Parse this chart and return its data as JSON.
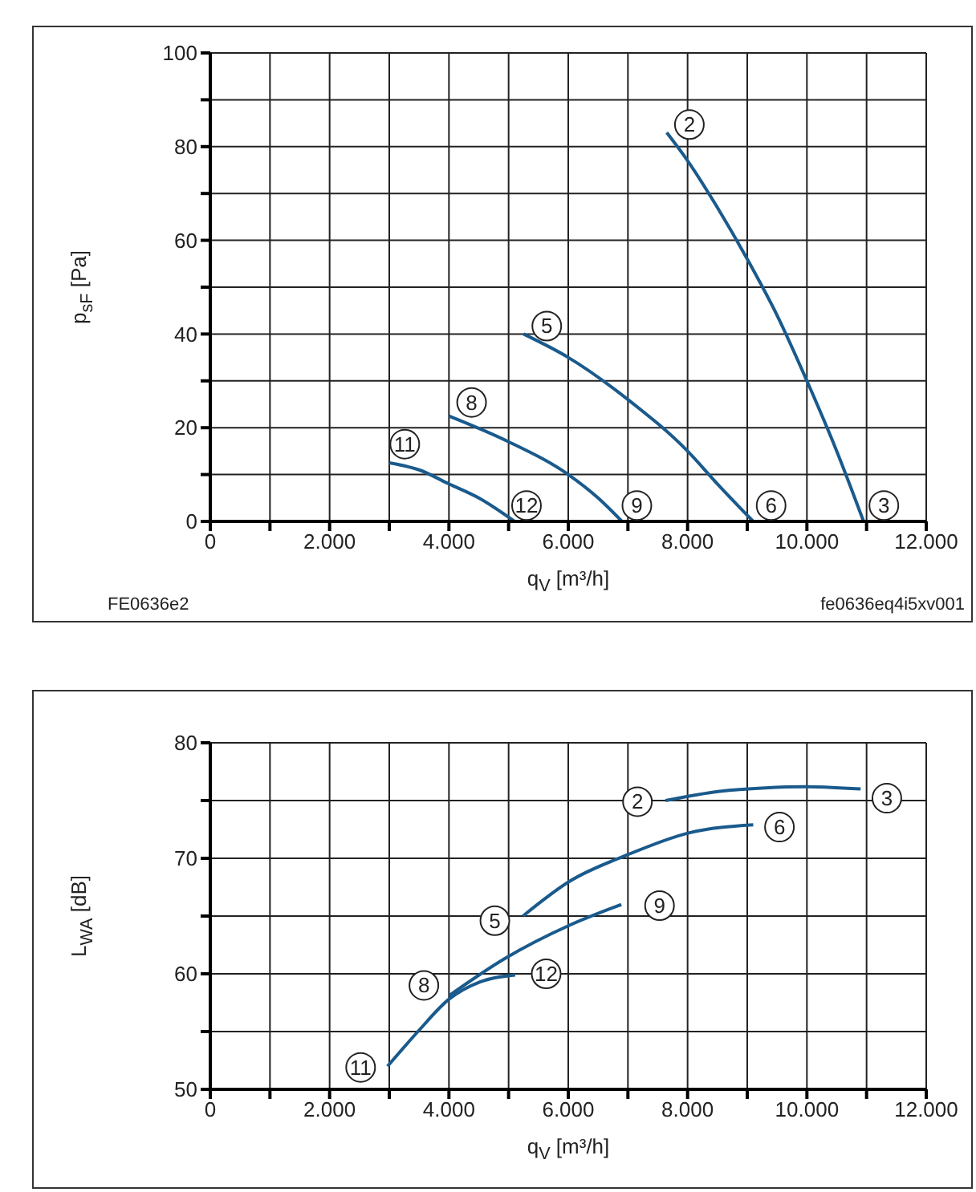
{
  "chart_data": [
    {
      "type": "line",
      "xlabel": "q$_{V}$ [m³/h]",
      "ylabel": "p$_{sF}$ [Pa]",
      "grid": true,
      "marker": "none",
      "xlim": [
        0,
        12000
      ],
      "xticks": [
        0,
        {
          "value": 1000,
          "label": null
        },
        {
          "value": 2000,
          "label": "2.000"
        },
        {
          "value": 3000,
          "label": null
        },
        {
          "value": 4000,
          "label": "4.000"
        },
        {
          "value": 5000,
          "label": null
        },
        {
          "value": 6000,
          "label": "6.000"
        },
        {
          "value": 7000,
          "label": null
        },
        {
          "value": 8000,
          "label": "8.000"
        },
        {
          "value": 9000,
          "label": null
        },
        {
          "value": 10000,
          "label": "10.000"
        },
        {
          "value": 11000,
          "label": null
        },
        {
          "value": 12000,
          "label": "12.000"
        }
      ],
      "ylim": [
        0,
        100
      ],
      "yticks": [
        0,
        {
          "value": 10,
          "label": null
        },
        20,
        {
          "value": 30,
          "label": null
        },
        40,
        {
          "value": 50,
          "label": null
        },
        60,
        {
          "value": 70,
          "label": null
        },
        80,
        {
          "value": 90,
          "label": null
        },
        100
      ],
      "series": [
        {
          "color": "#1a5a8c",
          "x": [
            7650,
            8000,
            8500,
            9000,
            9500,
            10000,
            10500,
            10950
          ],
          "values": [
            83,
            77,
            67,
            56,
            44,
            30,
            15,
            0
          ]
        },
        {
          "color": "#1a5a8c",
          "x": [
            5250,
            6000,
            7000,
            8000,
            8500,
            9100
          ],
          "values": [
            40,
            35,
            26,
            15,
            8,
            0
          ]
        },
        {
          "color": "#1a5a8c",
          "x": [
            4000,
            5000,
            6000,
            6500,
            6900
          ],
          "values": [
            22.5,
            17,
            10,
            5,
            0
          ]
        },
        {
          "color": "#1a5a8c",
          "x": [
            3000,
            3500,
            4000,
            4500,
            5100
          ],
          "values": [
            12.5,
            11,
            8,
            5,
            0
          ]
        }
      ],
      "annotations": [
        {
          "text": "2",
          "x": 8030,
          "y": 84.7
        },
        {
          "text": "3",
          "x": 11290,
          "y": 3.4
        },
        {
          "text": "5",
          "x": 5640,
          "y": 41.7
        },
        {
          "text": "6",
          "x": 9400,
          "y": 3.4
        },
        {
          "text": "8",
          "x": 4380,
          "y": 25.4
        },
        {
          "text": "9",
          "x": 7150,
          "y": 3.4
        },
        {
          "text": "11",
          "x": 3260,
          "y": 16.5
        },
        {
          "text": "12",
          "x": 5300,
          "y": 3.4
        },
        "FE0636e2",
        "fe0636eq4i5xv001"
      ]
    },
    {
      "type": "line",
      "xlabel": "q$_{V}$ [m³/h]",
      "ylabel": "L$_{WA}$ [dB]",
      "grid": true,
      "marker": "none",
      "xlim": [
        0,
        12000
      ],
      "xticks": [
        0,
        {
          "value": 1000,
          "label": null
        },
        {
          "value": 2000,
          "label": "2.000"
        },
        {
          "value": 3000,
          "label": null
        },
        {
          "value": 4000,
          "label": "4.000"
        },
        {
          "value": 5000,
          "label": null
        },
        {
          "value": 6000,
          "label": "6.000"
        },
        {
          "value": 7000,
          "label": null
        },
        {
          "value": 8000,
          "label": "8.000"
        },
        {
          "value": 9000,
          "label": null
        },
        {
          "value": 10000,
          "label": "10.000"
        },
        {
          "value": 11000,
          "label": null
        },
        {
          "value": 12000,
          "label": "12.000"
        }
      ],
      "ylim": [
        50,
        80
      ],
      "yticks": [
        50,
        {
          "value": 55,
          "label": null
        },
        60,
        {
          "value": 65,
          "label": null
        },
        70,
        {
          "value": 75,
          "label": null
        },
        80
      ],
      "series": [
        {
          "color": "#1a5a8c",
          "x": [
            7630,
            8540,
            9300,
            9980,
            10900
          ],
          "values": [
            75.0,
            75.8,
            76.1,
            76.2,
            76.0
          ]
        },
        {
          "color": "#1a5a8c",
          "x": [
            5240,
            6020,
            6990,
            8020,
            9100
          ],
          "values": [
            65.0,
            68.0,
            70.3,
            72.2,
            72.9
          ]
        },
        {
          "color": "#1a5a8c",
          "x": [
            4000,
            4930,
            6020,
            6890
          ],
          "values": [
            58.1,
            61.3,
            64.2,
            66.0
          ]
        },
        {
          "color": "#1a5a8c",
          "x": [
            2970,
            3480,
            4000,
            4520,
            5110
          ],
          "values": [
            52.0,
            55.0,
            57.8,
            59.3,
            59.9
          ]
        }
      ],
      "annotations": [
        {
          "text": "2",
          "x": 7160,
          "y": 74.9
        },
        {
          "text": "3",
          "x": 11340,
          "y": 75.2
        },
        {
          "text": "5",
          "x": 4770,
          "y": 64.6
        },
        {
          "text": "6",
          "x": 9540,
          "y": 72.7
        },
        {
          "text": "8",
          "x": 3580,
          "y": 59.0
        },
        {
          "text": "9",
          "x": 7530,
          "y": 65.9
        },
        {
          "text": "11",
          "x": 2520,
          "y": 51.9
        },
        {
          "text": "12",
          "x": 5630,
          "y": 60.0
        }
      ]
    }
  ]
}
